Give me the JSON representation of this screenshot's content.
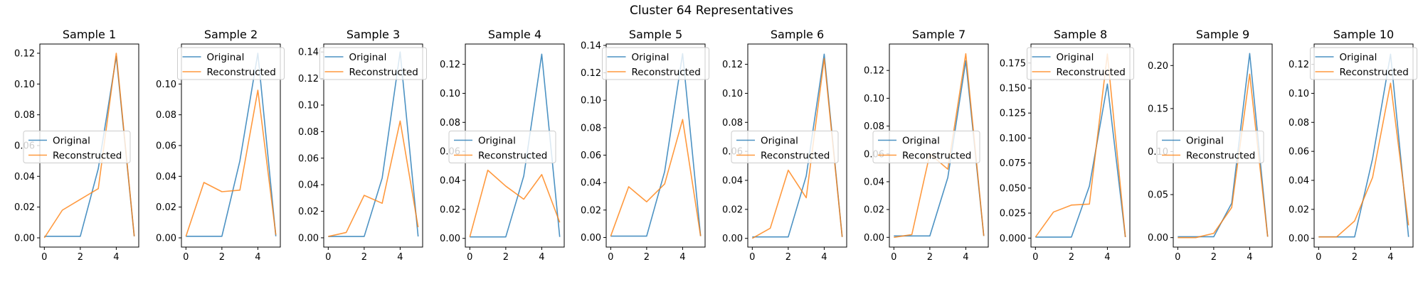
{
  "figure": {
    "title": "Cluster 64 Representatives",
    "colors": {
      "original": "#1f77b4",
      "reconstructed": "#ff7f0e"
    }
  },
  "chart_data": [
    {
      "type": "line",
      "title": "Sample 1",
      "x": [
        0,
        1,
        2,
        3,
        4,
        5
      ],
      "xticks": [
        0,
        2,
        4
      ],
      "xlim": [
        -0.25,
        5.25
      ],
      "ylim": [
        -0.006,
        0.126
      ],
      "yticks": [
        "0.00",
        "0.02",
        "0.04",
        "0.06",
        "0.08",
        "0.10",
        "0.12"
      ],
      "legend": "center-left",
      "series": [
        {
          "name": "Original",
          "values": [
            0.001,
            0.001,
            0.001,
            0.045,
            0.118,
            0.001
          ]
        },
        {
          "name": "Reconstructed",
          "values": [
            0.0,
            0.018,
            0.025,
            0.032,
            0.12,
            0.001
          ]
        }
      ]
    },
    {
      "type": "line",
      "title": "Sample 2",
      "x": [
        0,
        1,
        2,
        3,
        4,
        5
      ],
      "xticks": [
        0,
        2,
        4
      ],
      "xlim": [
        -0.25,
        5.25
      ],
      "ylim": [
        -0.006,
        0.126
      ],
      "yticks": [
        "0.00",
        "0.02",
        "0.04",
        "0.06",
        "0.08",
        "0.10"
      ],
      "legend": "top-center",
      "series": [
        {
          "name": "Original",
          "values": [
            0.001,
            0.001,
            0.001,
            0.05,
            0.12,
            0.001
          ]
        },
        {
          "name": "Reconstructed",
          "values": [
            0.001,
            0.036,
            0.03,
            0.031,
            0.096,
            0.002
          ]
        }
      ]
    },
    {
      "type": "line",
      "title": "Sample 3",
      "x": [
        0,
        1,
        2,
        3,
        4,
        5
      ],
      "xticks": [
        0,
        2,
        4
      ],
      "xlim": [
        -0.25,
        5.25
      ],
      "ylim": [
        -0.007,
        0.146
      ],
      "yticks": [
        "0.00",
        "0.02",
        "0.04",
        "0.06",
        "0.08",
        "0.10",
        "0.12",
        "0.14"
      ],
      "legend": "top-center",
      "series": [
        {
          "name": "Original",
          "values": [
            0.001,
            0.001,
            0.001,
            0.045,
            0.14,
            0.001
          ]
        },
        {
          "name": "Reconstructed",
          "values": [
            0.001,
            0.004,
            0.032,
            0.026,
            0.088,
            0.008
          ]
        }
      ]
    },
    {
      "type": "line",
      "title": "Sample 4",
      "x": [
        0,
        1,
        2,
        3,
        4,
        5
      ],
      "xticks": [
        0,
        2,
        4
      ],
      "xlim": [
        -0.25,
        5.25
      ],
      "ylim": [
        -0.006,
        0.134
      ],
      "yticks": [
        "0.00",
        "0.02",
        "0.04",
        "0.06",
        "0.08",
        "0.10",
        "0.12"
      ],
      "legend": "center-left",
      "series": [
        {
          "name": "Original",
          "values": [
            0.001,
            0.001,
            0.001,
            0.043,
            0.127,
            0.001
          ]
        },
        {
          "name": "Reconstructed",
          "values": [
            0.001,
            0.047,
            0.036,
            0.027,
            0.044,
            0.011
          ]
        }
      ]
    },
    {
      "type": "line",
      "title": "Sample 5",
      "x": [
        0,
        1,
        2,
        3,
        4,
        5
      ],
      "xticks": [
        0,
        2,
        4
      ],
      "xlim": [
        -0.25,
        5.25
      ],
      "ylim": [
        -0.007,
        0.141
      ],
      "yticks": [
        "0.00",
        "0.02",
        "0.04",
        "0.06",
        "0.08",
        "0.10",
        "0.12",
        "0.14"
      ],
      "legend": "top-center",
      "series": [
        {
          "name": "Original",
          "values": [
            0.001,
            0.001,
            0.001,
            0.048,
            0.134,
            0.001
          ]
        },
        {
          "name": "Reconstructed",
          "values": [
            0.001,
            0.037,
            0.026,
            0.039,
            0.086,
            0.001
          ]
        }
      ]
    },
    {
      "type": "line",
      "title": "Sample 6",
      "x": [
        0,
        1,
        2,
        3,
        4,
        5
      ],
      "xticks": [
        0,
        2,
        4
      ],
      "xlim": [
        -0.25,
        5.25
      ],
      "ylim": [
        -0.006,
        0.134
      ],
      "yticks": [
        "0.00",
        "0.02",
        "0.04",
        "0.06",
        "0.08",
        "0.10",
        "0.12"
      ],
      "legend": "center-left",
      "series": [
        {
          "name": "Original",
          "values": [
            0.001,
            0.001,
            0.001,
            0.043,
            0.127,
            0.001
          ]
        },
        {
          "name": "Reconstructed",
          "values": [
            0.0,
            0.007,
            0.047,
            0.028,
            0.124,
            0.001
          ]
        }
      ]
    },
    {
      "type": "line",
      "title": "Sample 7",
      "x": [
        0,
        1,
        2,
        3,
        4,
        5
      ],
      "xticks": [
        0,
        2,
        4
      ],
      "xlim": [
        -0.25,
        5.25
      ],
      "ylim": [
        -0.007,
        0.139
      ],
      "yticks": [
        "0.00",
        "0.02",
        "0.04",
        "0.06",
        "0.08",
        "0.10",
        "0.12"
      ],
      "legend": "center-left",
      "series": [
        {
          "name": "Original",
          "values": [
            0.001,
            0.001,
            0.001,
            0.043,
            0.127,
            0.001
          ]
        },
        {
          "name": "Reconstructed",
          "values": [
            0.0,
            0.002,
            0.06,
            0.049,
            0.132,
            0.001
          ]
        }
      ]
    },
    {
      "type": "line",
      "title": "Sample 8",
      "x": [
        0,
        1,
        2,
        3,
        4,
        5
      ],
      "xticks": [
        0,
        2,
        4
      ],
      "xlim": [
        -0.25,
        5.25
      ],
      "ylim": [
        -0.009,
        0.194
      ],
      "yticks": [
        "0.000",
        "0.025",
        "0.050",
        "0.075",
        "0.100",
        "0.125",
        "0.150",
        "0.175"
      ],
      "legend": "top-center",
      "series": [
        {
          "name": "Original",
          "values": [
            0.001,
            0.001,
            0.001,
            0.052,
            0.154,
            0.001
          ]
        },
        {
          "name": "Reconstructed",
          "values": [
            0.001,
            0.026,
            0.033,
            0.034,
            0.184,
            0.001
          ]
        }
      ]
    },
    {
      "type": "line",
      "title": "Sample 9",
      "x": [
        0,
        1,
        2,
        3,
        4,
        5
      ],
      "xticks": [
        0,
        2,
        4
      ],
      "xlim": [
        -0.25,
        5.25
      ],
      "ylim": [
        -0.011,
        0.225
      ],
      "yticks": [
        "0.00",
        "0.05",
        "0.10",
        "0.15",
        "0.20"
      ],
      "legend": "center-left",
      "series": [
        {
          "name": "Original",
          "values": [
            0.001,
            0.001,
            0.001,
            0.04,
            0.214,
            0.001
          ]
        },
        {
          "name": "Reconstructed",
          "values": [
            0.0,
            0.0,
            0.005,
            0.035,
            0.19,
            0.001
          ]
        }
      ]
    },
    {
      "type": "line",
      "title": "Sample 10",
      "x": [
        0,
        1,
        2,
        3,
        4,
        5
      ],
      "xticks": [
        0,
        2,
        4
      ],
      "xlim": [
        -0.25,
        5.25
      ],
      "ylim": [
        -0.006,
        0.134
      ],
      "yticks": [
        "0.00",
        "0.02",
        "0.04",
        "0.06",
        "0.08",
        "0.10",
        "0.12"
      ],
      "legend": "top-center",
      "series": [
        {
          "name": "Original",
          "values": [
            0.001,
            0.001,
            0.001,
            0.055,
            0.127,
            0.001
          ]
        },
        {
          "name": "Reconstructed",
          "values": [
            0.001,
            0.001,
            0.012,
            0.042,
            0.107,
            0.009
          ]
        }
      ]
    }
  ]
}
